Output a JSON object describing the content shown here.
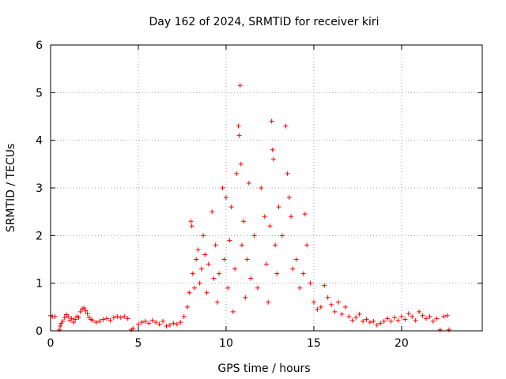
{
  "chart_data": {
    "type": "scatter",
    "title": "Day 162 of 2024, SRMTID for receiver kiri",
    "xlabel": "GPS time / hours",
    "ylabel": "SRMTID / TECUs",
    "xlim": [
      0,
      24.6
    ],
    "ylim": [
      0,
      6
    ],
    "xticks": [
      0,
      5,
      10,
      15,
      20
    ],
    "yticks": [
      0,
      1,
      2,
      3,
      4,
      5,
      6
    ],
    "grid": true,
    "marker": "+",
    "series": [
      {
        "name": "SRMTID",
        "color": "#ff0000",
        "points": [
          [
            0.0,
            0.32
          ],
          [
            0.1,
            0.3
          ],
          [
            0.25,
            0.3
          ],
          [
            0.5,
            0.02
          ],
          [
            0.55,
            0.1
          ],
          [
            0.6,
            0.16
          ],
          [
            0.7,
            0.2
          ],
          [
            0.8,
            0.28
          ],
          [
            0.9,
            0.34
          ],
          [
            1.0,
            0.3
          ],
          [
            1.1,
            0.22
          ],
          [
            1.2,
            0.26
          ],
          [
            1.3,
            0.18
          ],
          [
            1.4,
            0.24
          ],
          [
            1.5,
            0.3
          ],
          [
            1.6,
            0.28
          ],
          [
            1.7,
            0.4
          ],
          [
            1.8,
            0.46
          ],
          [
            1.9,
            0.48
          ],
          [
            2.0,
            0.42
          ],
          [
            2.1,
            0.36
          ],
          [
            2.2,
            0.28
          ],
          [
            2.3,
            0.24
          ],
          [
            2.4,
            0.22
          ],
          [
            2.6,
            0.18
          ],
          [
            2.8,
            0.2
          ],
          [
            3.0,
            0.24
          ],
          [
            3.2,
            0.26
          ],
          [
            3.4,
            0.22
          ],
          [
            3.6,
            0.28
          ],
          [
            3.8,
            0.3
          ],
          [
            4.0,
            0.28
          ],
          [
            4.2,
            0.3
          ],
          [
            4.4,
            0.26
          ],
          [
            4.6,
            0.02
          ],
          [
            4.7,
            0.05
          ],
          [
            5.0,
            0.14
          ],
          [
            5.2,
            0.18
          ],
          [
            5.4,
            0.2
          ],
          [
            5.6,
            0.16
          ],
          [
            5.8,
            0.22
          ],
          [
            6.0,
            0.18
          ],
          [
            6.2,
            0.14
          ],
          [
            6.4,
            0.2
          ],
          [
            6.6,
            0.1
          ],
          [
            6.8,
            0.12
          ],
          [
            7.0,
            0.16
          ],
          [
            7.2,
            0.14
          ],
          [
            7.4,
            0.18
          ],
          [
            7.6,
            0.3
          ],
          [
            7.8,
            0.5
          ],
          [
            7.9,
            0.8
          ],
          [
            8.0,
            2.3
          ],
          [
            8.05,
            2.2
          ],
          [
            8.1,
            1.2
          ],
          [
            8.2,
            0.9
          ],
          [
            8.3,
            1.5
          ],
          [
            8.4,
            1.7
          ],
          [
            8.5,
            1.0
          ],
          [
            8.6,
            1.3
          ],
          [
            8.7,
            2.0
          ],
          [
            8.8,
            1.6
          ],
          [
            8.9,
            0.8
          ],
          [
            9.0,
            1.4
          ],
          [
            9.2,
            2.5
          ],
          [
            9.3,
            1.1
          ],
          [
            9.4,
            1.8
          ],
          [
            9.5,
            0.6
          ],
          [
            9.6,
            1.2
          ],
          [
            9.8,
            3.0
          ],
          [
            9.9,
            1.5
          ],
          [
            10.0,
            2.8
          ],
          [
            10.1,
            0.9
          ],
          [
            10.2,
            1.9
          ],
          [
            10.3,
            2.6
          ],
          [
            10.4,
            0.4
          ],
          [
            10.5,
            1.3
          ],
          [
            10.6,
            3.3
          ],
          [
            10.7,
            4.3
          ],
          [
            10.75,
            4.1
          ],
          [
            10.8,
            5.15
          ],
          [
            10.85,
            3.5
          ],
          [
            10.9,
            1.8
          ],
          [
            11.0,
            2.3
          ],
          [
            11.1,
            0.7
          ],
          [
            11.2,
            1.5
          ],
          [
            11.3,
            3.1
          ],
          [
            11.4,
            1.1
          ],
          [
            11.6,
            2.0
          ],
          [
            11.8,
            0.9
          ],
          [
            12.0,
            3.0
          ],
          [
            12.2,
            2.4
          ],
          [
            12.3,
            1.4
          ],
          [
            12.4,
            0.6
          ],
          [
            12.5,
            2.2
          ],
          [
            12.6,
            4.4
          ],
          [
            12.65,
            3.8
          ],
          [
            12.7,
            3.6
          ],
          [
            12.8,
            1.8
          ],
          [
            12.9,
            1.2
          ],
          [
            13.0,
            2.6
          ],
          [
            13.2,
            2.0
          ],
          [
            13.4,
            4.3
          ],
          [
            13.5,
            3.3
          ],
          [
            13.6,
            2.8
          ],
          [
            13.7,
            2.4
          ],
          [
            13.8,
            1.3
          ],
          [
            14.0,
            1.5
          ],
          [
            14.2,
            0.9
          ],
          [
            14.4,
            1.2
          ],
          [
            14.5,
            2.45
          ],
          [
            14.6,
            1.8
          ],
          [
            14.8,
            1.0
          ],
          [
            15.0,
            0.6
          ],
          [
            15.2,
            0.45
          ],
          [
            15.4,
            0.5
          ],
          [
            15.6,
            0.95
          ],
          [
            15.8,
            0.7
          ],
          [
            16.0,
            0.55
          ],
          [
            16.2,
            0.4
          ],
          [
            16.4,
            0.6
          ],
          [
            16.6,
            0.35
          ],
          [
            16.8,
            0.5
          ],
          [
            17.0,
            0.3
          ],
          [
            17.2,
            0.22
          ],
          [
            17.4,
            0.28
          ],
          [
            17.6,
            0.35
          ],
          [
            17.8,
            0.2
          ],
          [
            18.0,
            0.24
          ],
          [
            18.2,
            0.18
          ],
          [
            18.4,
            0.2
          ],
          [
            18.6,
            0.12
          ],
          [
            18.8,
            0.16
          ],
          [
            19.0,
            0.2
          ],
          [
            19.2,
            0.26
          ],
          [
            19.4,
            0.2
          ],
          [
            19.6,
            0.28
          ],
          [
            19.8,
            0.22
          ],
          [
            20.0,
            0.3
          ],
          [
            20.2,
            0.24
          ],
          [
            20.4,
            0.36
          ],
          [
            20.6,
            0.3
          ],
          [
            20.8,
            0.22
          ],
          [
            21.0,
            0.4
          ],
          [
            21.2,
            0.32
          ],
          [
            21.4,
            0.26
          ],
          [
            21.6,
            0.3
          ],
          [
            21.8,
            0.2
          ],
          [
            22.0,
            0.26
          ],
          [
            22.2,
            0.02
          ],
          [
            22.4,
            0.3
          ],
          [
            22.6,
            0.32
          ],
          [
            22.7,
            0.02
          ]
        ]
      }
    ]
  }
}
